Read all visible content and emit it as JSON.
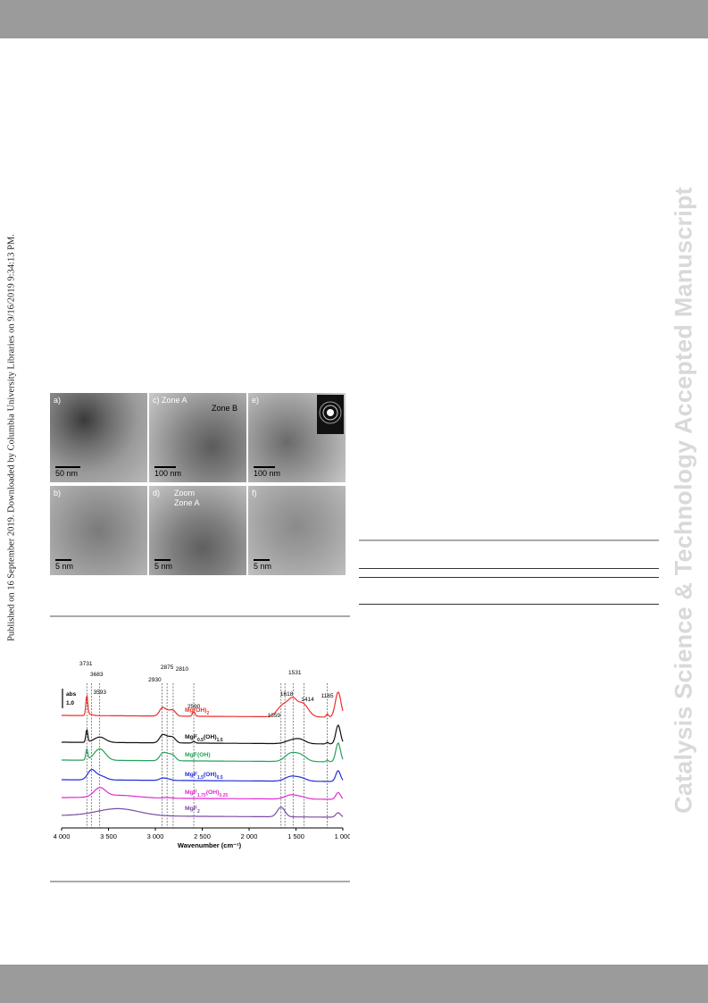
{
  "header": {
    "color": "#9b9b9b"
  },
  "footer": {
    "color": "#9b9b9b"
  },
  "margin_note": "Published on 16 September 2019. Downloaded by Columbia University Libraries on 9/16/2019 9:34:13 PM.",
  "watermark": "Catalysis Science & Technology Accepted Manuscript",
  "tem_figure": {
    "panels": [
      {
        "label": "a)",
        "scale": "50 nm"
      },
      {
        "label": "c)  Zone A",
        "zone_b": "Zone B",
        "scale": "100 nm"
      },
      {
        "label": "e)",
        "scale": "100 nm"
      },
      {
        "label": "b)",
        "scale": "5 nm"
      },
      {
        "label": "d)",
        "zoom_line1": "Zoom",
        "zoom_line2": "Zone A",
        "scale": "5 nm"
      },
      {
        "label": "f)",
        "scale": "5 nm"
      }
    ]
  },
  "chart_data": {
    "type": "line",
    "xlabel": "Wavenumber (cm⁻¹)",
    "xlim": [
      4000,
      1000
    ],
    "xticks": [
      "4 000",
      "3 500",
      "3 000",
      "2 500",
      "2 000",
      "1 500",
      "1 000"
    ],
    "scale_bar": {
      "label_1": "abs",
      "label_2": "1.0",
      "value": 1.0
    },
    "peaks": [
      {
        "label": "3731",
        "x": 3731
      },
      {
        "label": "3683",
        "x": 3683
      },
      {
        "label": "3593",
        "x": 3593
      },
      {
        "label": "2930",
        "x": 2930
      },
      {
        "label": "2875",
        "x": 2875
      },
      {
        "label": "2810",
        "x": 2810
      },
      {
        "label": "2590",
        "x": 2590
      },
      {
        "label": "1659",
        "x": 1659
      },
      {
        "label": "1618",
        "x": 1618
      },
      {
        "label": "1531",
        "x": 1531
      },
      {
        "label": "1414",
        "x": 1414
      },
      {
        "label": "1165",
        "x": 1165
      }
    ],
    "series": [
      {
        "name": "Mg(OH)2",
        "base": "Mg(OH)",
        "sub": "2",
        "tail": "",
        "sub2": "",
        "color": "#e8302f"
      },
      {
        "name": "MgF0.5(OH)1.5",
        "base": "MgF",
        "sub": "0.5",
        "tail": "(OH)",
        "sub2": "1.5",
        "color": "#111111"
      },
      {
        "name": "MgF(OH)",
        "base": "MgF(OH)",
        "sub": "",
        "tail": "",
        "sub2": "",
        "color": "#25a25a"
      },
      {
        "name": "MgF1.5(OH)0.5",
        "base": "MgF",
        "sub": "1.5",
        "tail": "(OH)",
        "sub2": "0.5",
        "color": "#1f2fd8"
      },
      {
        "name": "MgF1.75(OH)0.25",
        "base": "MgF",
        "sub": "1.75",
        "tail": "(OH)",
        "sub2": "0.25",
        "color": "#e02bd0"
      },
      {
        "name": "MgF2",
        "base": "MgF",
        "sub": "2",
        "tail": "",
        "sub2": "",
        "color": "#7b4aa6"
      }
    ]
  }
}
